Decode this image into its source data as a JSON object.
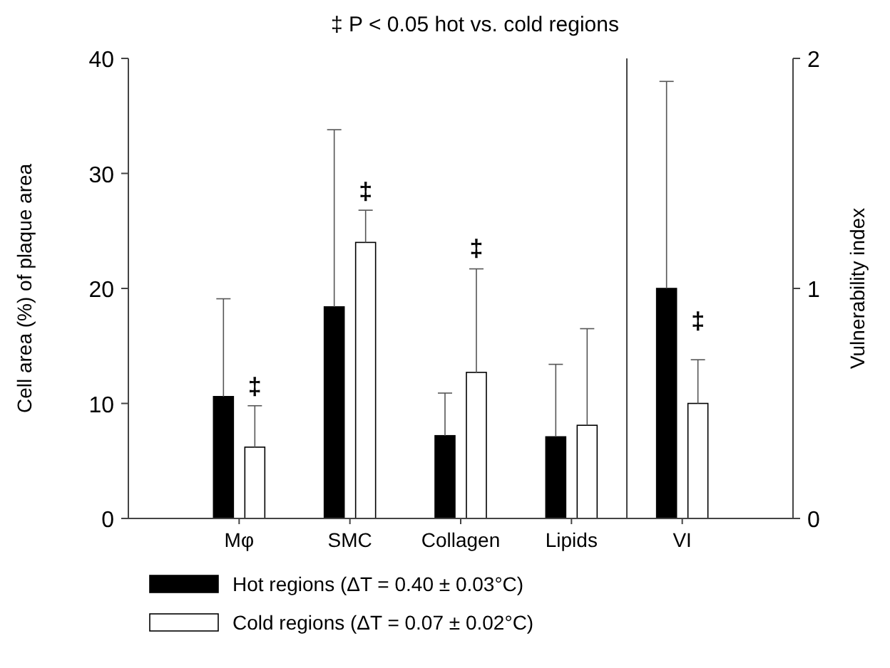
{
  "chart_data": {
    "type": "bar",
    "title": "‡ P < 0.05 hot vs. cold regions",
    "ylabel": "Cell area (%) of plaque area",
    "y2label": "Vulnerability index",
    "categories": [
      "Mφ",
      "SMC",
      "Collagen",
      "Lipids",
      "VI"
    ],
    "series": [
      {
        "name": "Hot regions (ΔT = 0.40 ± 0.03°C)",
        "color": "#000000",
        "values": [
          10.6,
          18.4,
          7.2,
          7.1,
          null
        ],
        "errors": [
          [
            10.6,
            19.1
          ],
          [
            18.4,
            33.8
          ],
          [
            7.2,
            10.9
          ],
          [
            7.1,
            13.4
          ],
          null
        ]
      },
      {
        "name": "Cold regions (ΔT = 0.07 ± 0.02°C)",
        "color": "#ffffff",
        "values": [
          6.2,
          24.0,
          12.7,
          8.1,
          null
        ],
        "errors": [
          [
            6.2,
            9.8
          ],
          [
            24.0,
            26.8
          ],
          [
            12.7,
            21.7
          ],
          [
            8.1,
            16.5
          ],
          null
        ]
      },
      {
        "color": "#000000",
        "axis": "y2",
        "values": [
          null,
          null,
          null,
          null,
          1.0
        ],
        "errors": [
          null,
          null,
          null,
          null,
          [
            1.0,
            1.9
          ]
        ]
      },
      {
        "color": "#ffffff",
        "axis": "y2",
        "values": [
          null,
          null,
          null,
          null,
          0.5
        ],
        "errors": [
          null,
          null,
          null,
          null,
          [
            0.5,
            0.69
          ]
        ]
      }
    ],
    "ylim": [
      0,
      40
    ],
    "yticks": [
      0,
      10,
      20,
      30,
      40
    ],
    "y2lim": [
      0,
      2
    ],
    "y2ticks": [
      0,
      1,
      2
    ],
    "annotations": [
      "‡",
      "‡",
      "‡",
      "‡"
    ],
    "legend": "bottom",
    "grid": false
  }
}
